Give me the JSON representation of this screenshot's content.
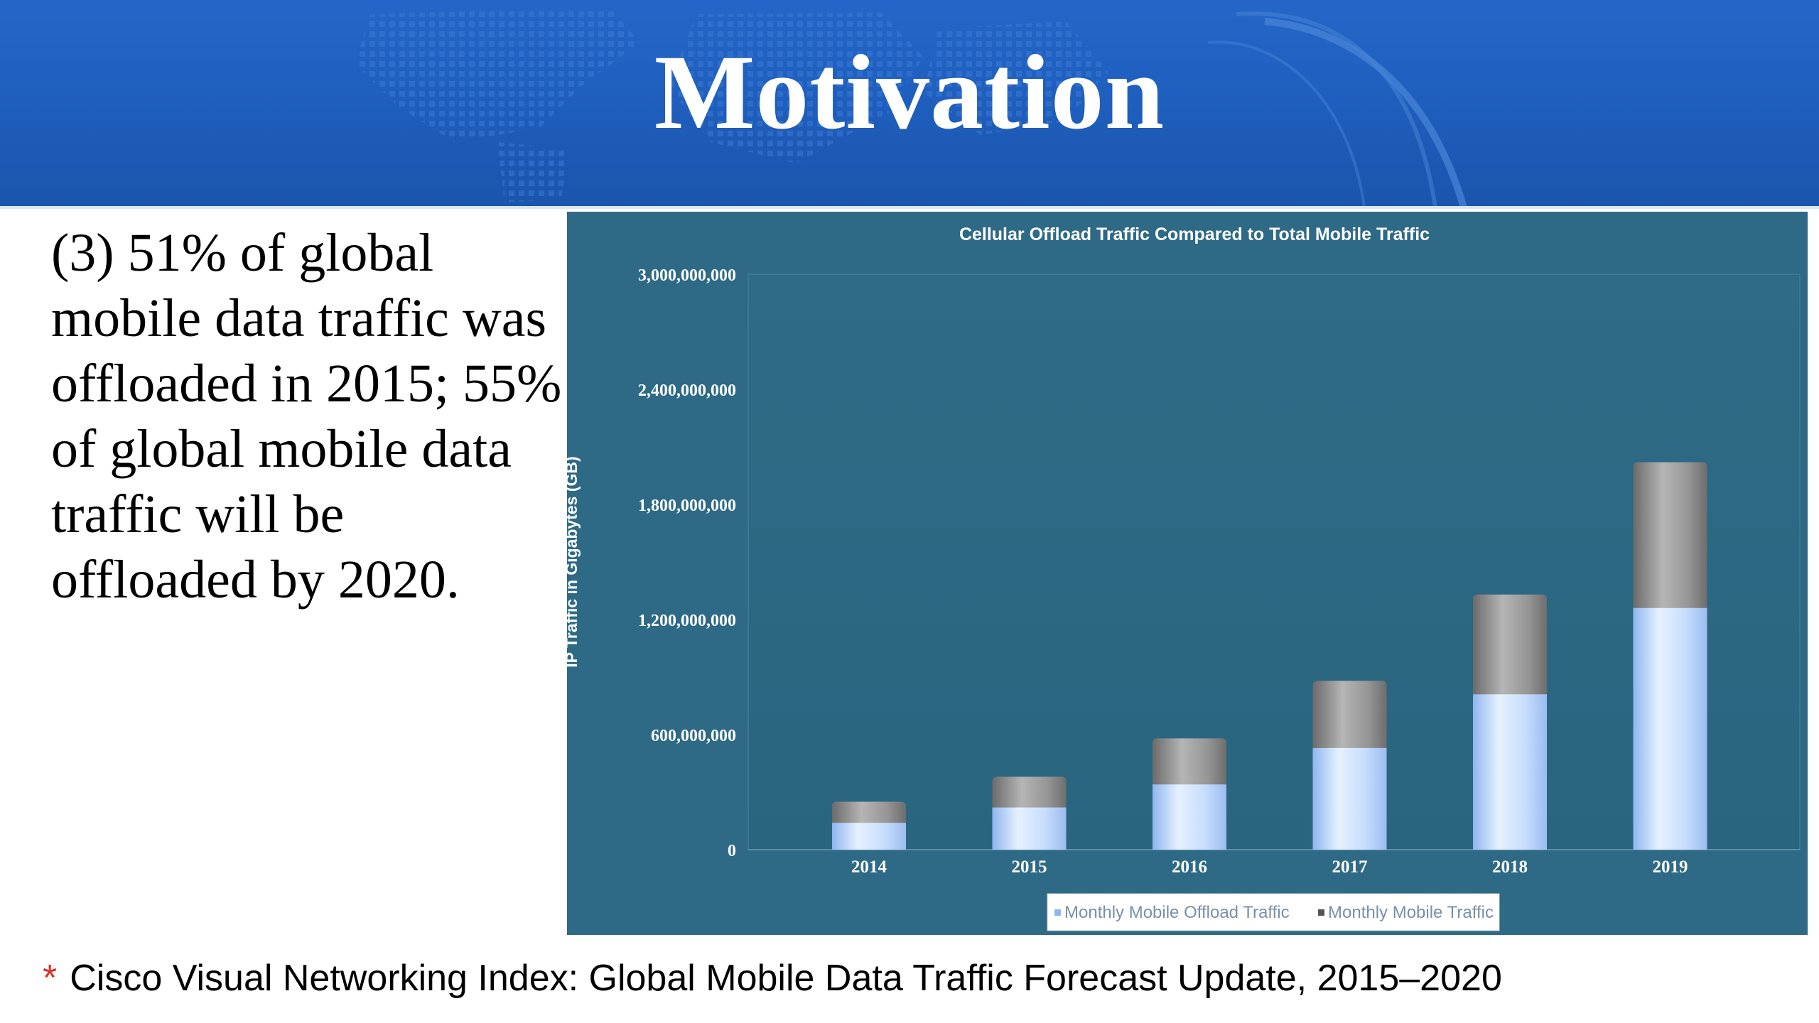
{
  "slide": {
    "title": "Motivation",
    "body": "(3) 51% of global mobile data traffic was offloaded in 2015; 55% of global mobile data traffic will be offloaded by 2020.",
    "footnote_mark": "*",
    "footnote": "Cisco Visual Networking Index: Global Mobile Data Traffic Forecast Update, 2015–2020"
  },
  "colors": {
    "header": "#1f5fbe",
    "panel": "#2e6a85",
    "offload": "#c6defc",
    "total": "#8f8f8f"
  },
  "chart_data": {
    "type": "bar",
    "stacked": true,
    "title": "Cellular Offload Traffic Compared to Total Mobile Traffic",
    "ylabel": "IP Traffic in Gigabytes (GB)",
    "xlabel": "",
    "categories": [
      "2014",
      "2015",
      "2016",
      "2017",
      "2018",
      "2019"
    ],
    "series": [
      {
        "name": "Monthly Mobile Offload Traffic",
        "values": [
          140000000,
          220000000,
          340000000,
          530000000,
          810000000,
          1260000000
        ]
      },
      {
        "name": "Monthly Mobile Traffic",
        "values": [
          250000000,
          380000000,
          580000000,
          880000000,
          1330000000,
          2020000000
        ]
      }
    ],
    "series_note": "Offload segment drawn at base; total traffic bar height shown behind it.",
    "ylim": [
      0,
      3000000000
    ],
    "yticks": [
      0,
      600000000,
      1200000000,
      1800000000,
      2400000000,
      3000000000
    ],
    "ytick_labels": [
      "0",
      "600,000,000",
      "1,200,000,000",
      "1,800,000,000",
      "2,400,000,000",
      "3,000,000,000"
    ],
    "grid": false,
    "legend_position": "bottom-center"
  }
}
